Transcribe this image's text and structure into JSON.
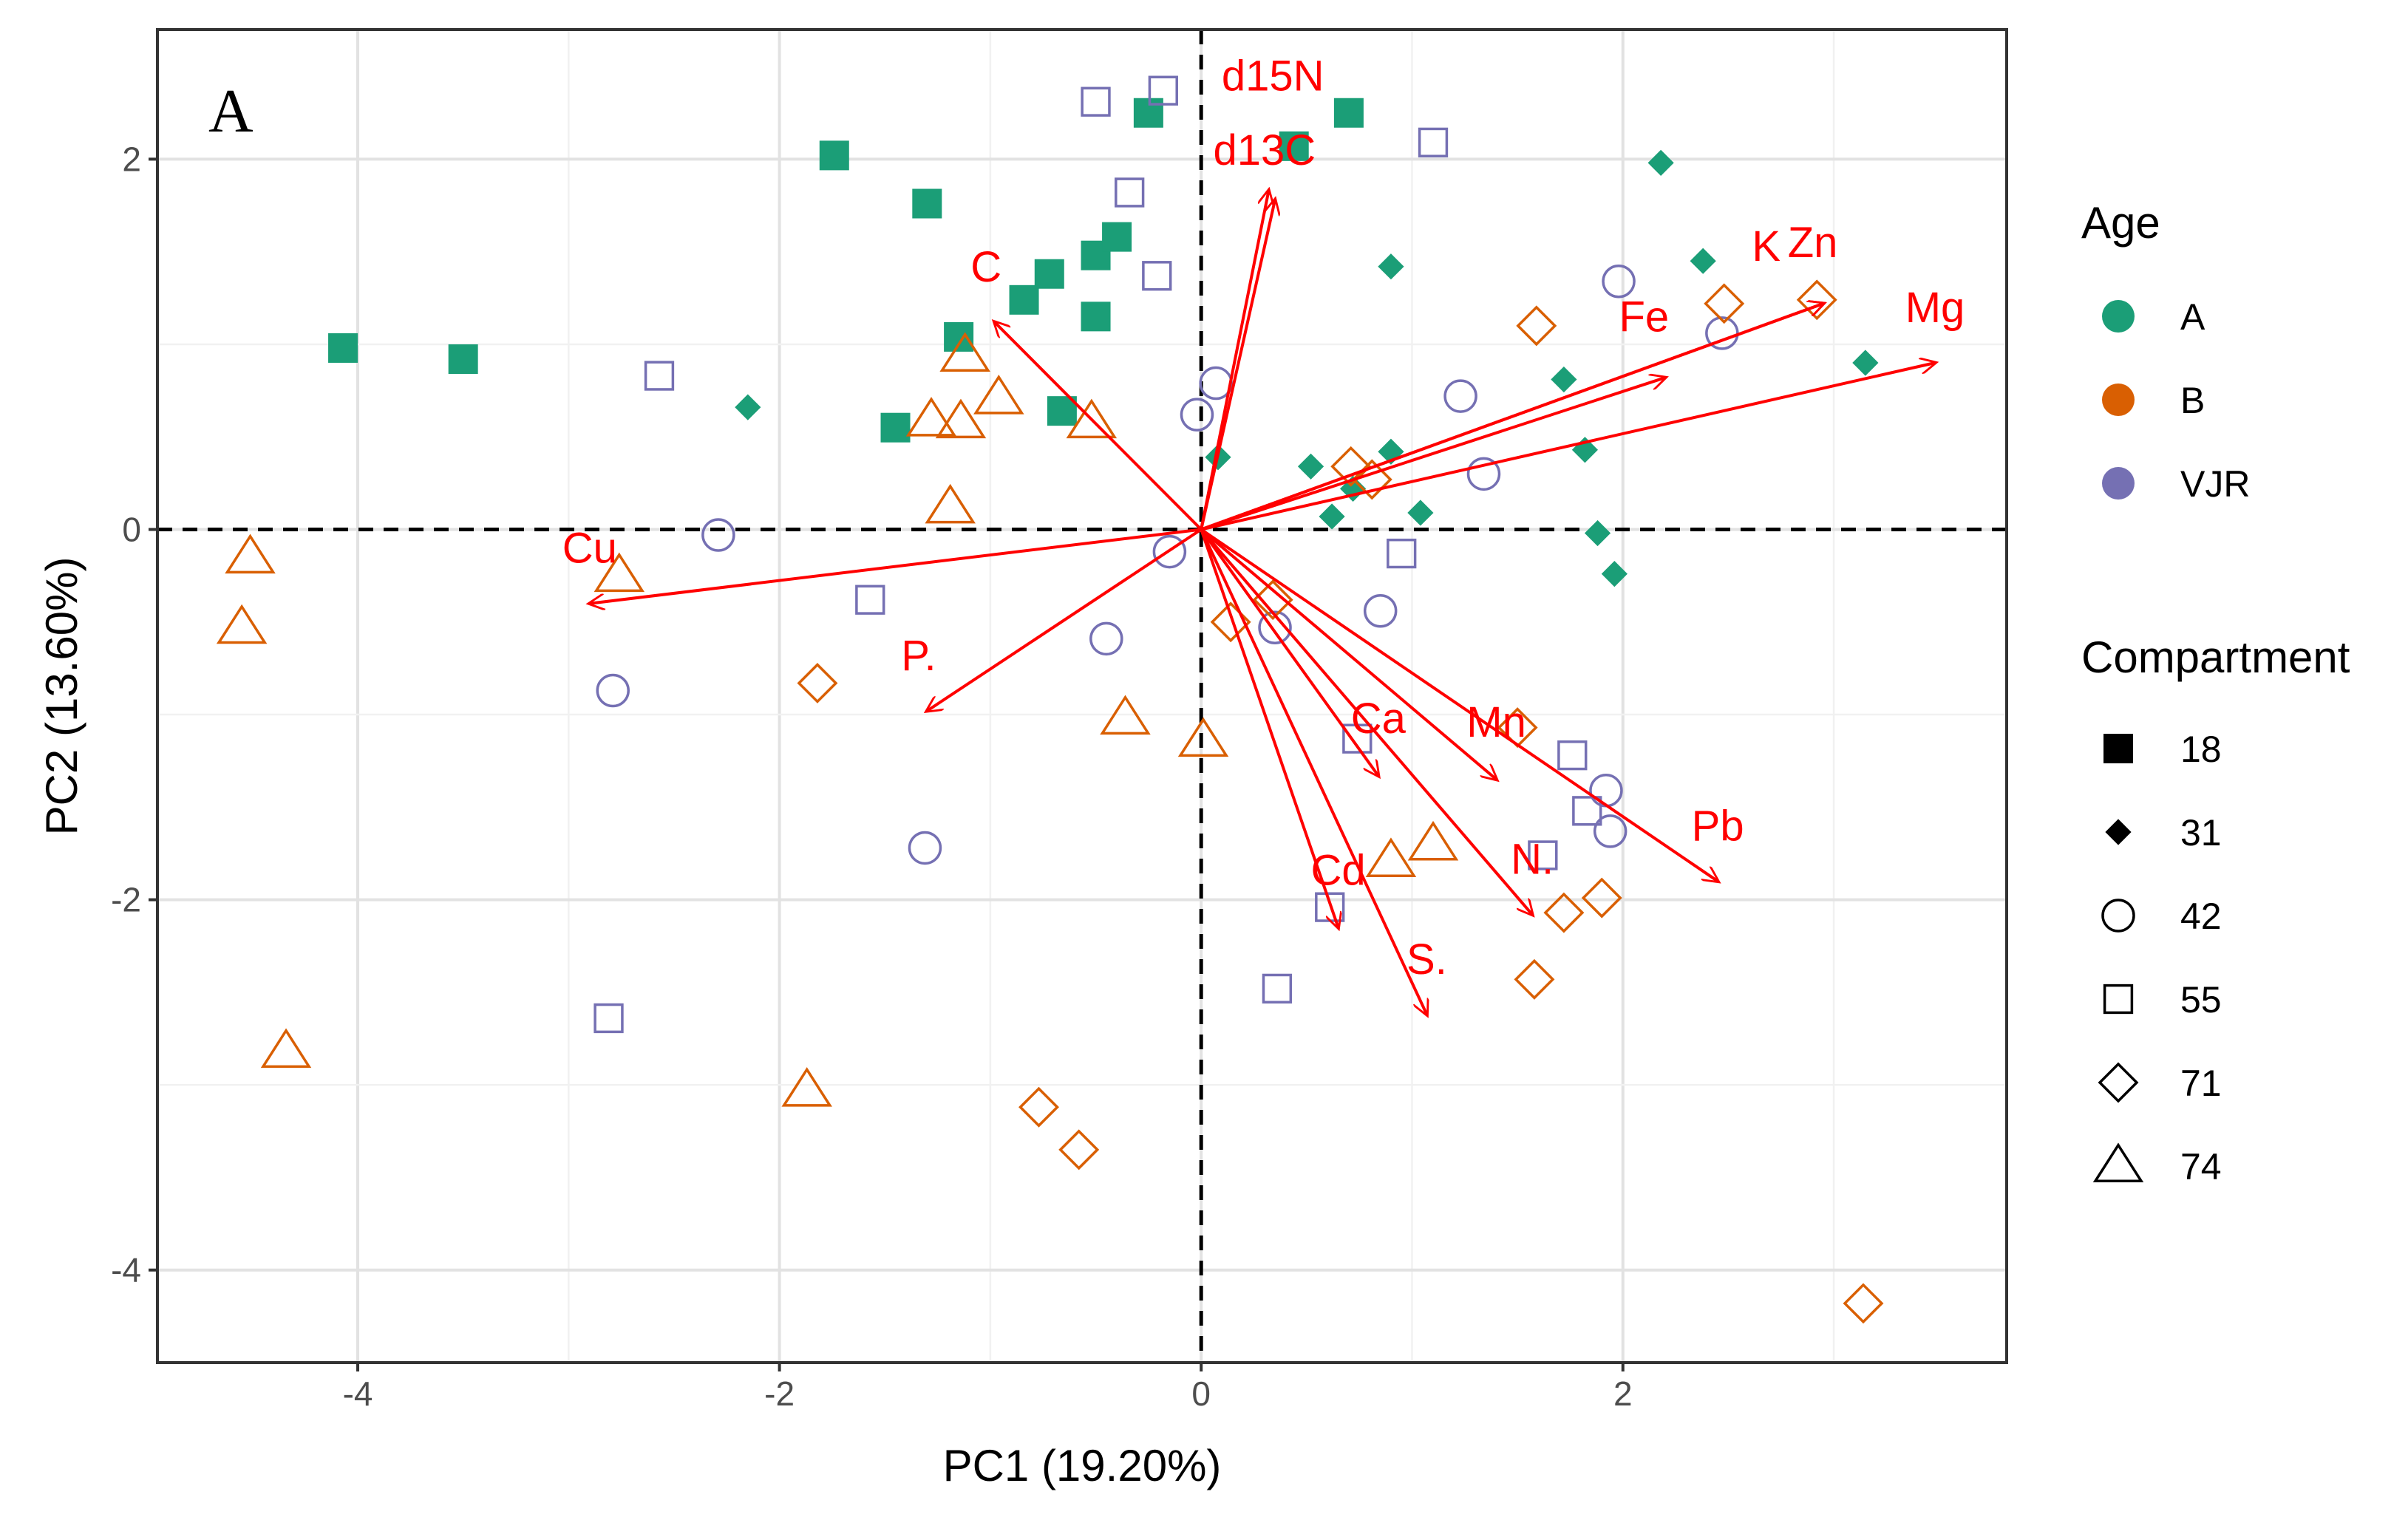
{
  "chart_data": {
    "type": "scatter",
    "panel_label": "A",
    "xlabel": "PC1 (19.20%)",
    "ylabel": "PC2 (13.60%)",
    "xlim": [
      -4.95,
      3.82
    ],
    "ylim": [
      -4.5,
      2.7
    ],
    "x_ticks": [
      -4,
      -2,
      0,
      2
    ],
    "y_ticks": [
      -4,
      -2,
      0,
      2
    ],
    "x_tick_labels": [
      "-4",
      "-2",
      "0",
      "2"
    ],
    "y_tick_labels": [
      "-4",
      "-2",
      "0",
      "2"
    ],
    "grid": true,
    "reference_lines": {
      "x": 0,
      "y": 0,
      "style": "dashed"
    },
    "legend_position": "right",
    "legends": {
      "age": {
        "title": "Age",
        "entries": [
          {
            "label": "A",
            "color": "#1b9e77"
          },
          {
            "label": "B",
            "color": "#d95f02"
          },
          {
            "label": "VJR",
            "color": "#7570b3"
          }
        ]
      },
      "compartment": {
        "title": "Compartment",
        "entries": [
          {
            "label": "18",
            "shape": "square-filled"
          },
          {
            "label": "31",
            "shape": "diamond-filled"
          },
          {
            "label": "42",
            "shape": "circle-open"
          },
          {
            "label": "55",
            "shape": "square-open"
          },
          {
            "label": "71",
            "shape": "diamond-open"
          },
          {
            "label": "74",
            "shape": "triangle-open"
          }
        ]
      }
    },
    "arrow_color": "#ff0000",
    "loadings": [
      {
        "label": "d15N",
        "x": 0.32,
        "y": 1.83
      },
      {
        "label": "d13C",
        "x": 0.35,
        "y": 1.78
      },
      {
        "label": "C",
        "x": -0.98,
        "y": 1.12
      },
      {
        "label": "K",
        "x": 2.95,
        "y": 1.22
      },
      {
        "label": "Zn",
        "x": 2.95,
        "y": 1.22
      },
      {
        "label": "Fe",
        "x": 2.2,
        "y": 0.82
      },
      {
        "label": "Mg",
        "x": 3.48,
        "y": 0.9
      },
      {
        "label": "Cu",
        "x": -2.9,
        "y": -0.4
      },
      {
        "label": "P",
        "x": -1.3,
        "y": -0.98
      },
      {
        "label": "Ca",
        "x": 0.84,
        "y": -1.33
      },
      {
        "label": "Mn",
        "x": 1.4,
        "y": -1.35
      },
      {
        "label": "Pb",
        "x": 2.45,
        "y": -1.9
      },
      {
        "label": "N",
        "x": 1.57,
        "y": -2.08
      },
      {
        "label": "Cd",
        "x": 0.65,
        "y": -2.15
      },
      {
        "label": "S",
        "x": 1.07,
        "y": -2.62
      }
    ],
    "loading_labels": [
      {
        "text": "d15N",
        "x": 0.34,
        "y": 2.37
      },
      {
        "text": "d13C",
        "x": 0.3,
        "y": 1.97
      },
      {
        "text": "C",
        "x": -1.02,
        "y": 1.34
      },
      {
        "text": "K",
        "x": 2.68,
        "y": 1.45
      },
      {
        "text": "Zn",
        "x": 2.9,
        "y": 1.47
      },
      {
        "text": "Fe",
        "x": 2.1,
        "y": 1.07
      },
      {
        "text": "Mg",
        "x": 3.48,
        "y": 1.12
      },
      {
        "text": "Cu",
        "x": -2.9,
        "y": -0.18
      },
      {
        "text": "P.",
        "x": -1.34,
        "y": -0.76
      },
      {
        "text": "Ca",
        "x": 0.84,
        "y": -1.1
      },
      {
        "text": "Mn",
        "x": 1.4,
        "y": -1.12
      },
      {
        "text": "Pb",
        "x": 2.45,
        "y": -1.68
      },
      {
        "text": "N.",
        "x": 1.57,
        "y": -1.86
      },
      {
        "text": "Cd",
        "x": 0.65,
        "y": -1.92
      },
      {
        "text": "S.",
        "x": 1.07,
        "y": -2.4
      }
    ],
    "points": [
      {
        "x": -4.07,
        "y": 0.98,
        "age": "A",
        "compartment": "18"
      },
      {
        "x": -3.5,
        "y": 0.92,
        "age": "A",
        "compartment": "18"
      },
      {
        "x": -1.74,
        "y": 2.02,
        "age": "A",
        "compartment": "18"
      },
      {
        "x": -1.3,
        "y": 1.76,
        "age": "A",
        "compartment": "18"
      },
      {
        "x": -1.15,
        "y": 1.04,
        "age": "A",
        "compartment": "18"
      },
      {
        "x": -1.45,
        "y": 0.55,
        "age": "A",
        "compartment": "18"
      },
      {
        "x": -0.84,
        "y": 1.24,
        "age": "A",
        "compartment": "18"
      },
      {
        "x": -0.72,
        "y": 1.38,
        "age": "A",
        "compartment": "18"
      },
      {
        "x": -0.5,
        "y": 1.48,
        "age": "A",
        "compartment": "18"
      },
      {
        "x": -0.4,
        "y": 1.58,
        "age": "A",
        "compartment": "18"
      },
      {
        "x": -0.5,
        "y": 1.15,
        "age": "A",
        "compartment": "18"
      },
      {
        "x": -0.66,
        "y": 0.64,
        "age": "A",
        "compartment": "18"
      },
      {
        "x": -0.25,
        "y": 2.25,
        "age": "A",
        "compartment": "18"
      },
      {
        "x": 0.44,
        "y": 2.07,
        "age": "A",
        "compartment": "18"
      },
      {
        "x": 0.7,
        "y": 2.25,
        "age": "A",
        "compartment": "18"
      },
      {
        "x": -2.15,
        "y": 0.66,
        "age": "A",
        "compartment": "31"
      },
      {
        "x": 0.08,
        "y": 0.39,
        "age": "A",
        "compartment": "31"
      },
      {
        "x": 0.52,
        "y": 0.34,
        "age": "A",
        "compartment": "31"
      },
      {
        "x": 0.62,
        "y": 0.07,
        "age": "A",
        "compartment": "31"
      },
      {
        "x": 0.72,
        "y": 0.22,
        "age": "A",
        "compartment": "31"
      },
      {
        "x": 0.9,
        "y": 0.42,
        "age": "A",
        "compartment": "31"
      },
      {
        "x": 1.04,
        "y": 0.09,
        "age": "A",
        "compartment": "31"
      },
      {
        "x": 0.9,
        "y": 1.42,
        "age": "A",
        "compartment": "31"
      },
      {
        "x": 1.72,
        "y": 0.81,
        "age": "A",
        "compartment": "31"
      },
      {
        "x": 1.82,
        "y": 0.43,
        "age": "A",
        "compartment": "31"
      },
      {
        "x": 1.88,
        "y": -0.02,
        "age": "A",
        "compartment": "31"
      },
      {
        "x": 1.96,
        "y": -0.24,
        "age": "A",
        "compartment": "31"
      },
      {
        "x": 2.18,
        "y": 1.98,
        "age": "A",
        "compartment": "31"
      },
      {
        "x": 2.38,
        "y": 1.45,
        "age": "A",
        "compartment": "31"
      },
      {
        "x": 3.15,
        "y": 0.9,
        "age": "A",
        "compartment": "31"
      },
      {
        "x": 1.98,
        "y": 1.34,
        "age": "VJR",
        "compartment": "42"
      },
      {
        "x": 1.23,
        "y": 0.72,
        "age": "VJR",
        "compartment": "42"
      },
      {
        "x": 1.34,
        "y": 0.3,
        "age": "VJR",
        "compartment": "42"
      },
      {
        "x": 0.07,
        "y": 0.79,
        "age": "VJR",
        "compartment": "42"
      },
      {
        "x": -0.02,
        "y": 0.62,
        "age": "VJR",
        "compartment": "42"
      },
      {
        "x": -0.15,
        "y": -0.12,
        "age": "VJR",
        "compartment": "42"
      },
      {
        "x": -0.45,
        "y": -0.59,
        "age": "VJR",
        "compartment": "42"
      },
      {
        "x": 0.35,
        "y": -0.53,
        "age": "VJR",
        "compartment": "42"
      },
      {
        "x": 0.85,
        "y": -0.44,
        "age": "VJR",
        "compartment": "42"
      },
      {
        "x": -2.29,
        "y": -0.03,
        "age": "VJR",
        "compartment": "42"
      },
      {
        "x": -2.79,
        "y": -0.87,
        "age": "VJR",
        "compartment": "42"
      },
      {
        "x": -1.31,
        "y": -1.72,
        "age": "VJR",
        "compartment": "42"
      },
      {
        "x": 1.92,
        "y": -1.41,
        "age": "VJR",
        "compartment": "42"
      },
      {
        "x": 1.94,
        "y": -1.63,
        "age": "VJR",
        "compartment": "42"
      },
      {
        "x": 2.47,
        "y": 1.06,
        "age": "VJR",
        "compartment": "42"
      },
      {
        "x": -0.5,
        "y": 2.31,
        "age": "VJR",
        "compartment": "55"
      },
      {
        "x": -0.18,
        "y": 2.37,
        "age": "VJR",
        "compartment": "55"
      },
      {
        "x": -0.34,
        "y": 1.82,
        "age": "VJR",
        "compartment": "55"
      },
      {
        "x": -0.21,
        "y": 1.37,
        "age": "VJR",
        "compartment": "55"
      },
      {
        "x": 1.1,
        "y": 2.09,
        "age": "VJR",
        "compartment": "55"
      },
      {
        "x": -2.57,
        "y": 0.83,
        "age": "VJR",
        "compartment": "55"
      },
      {
        "x": -1.57,
        "y": -0.38,
        "age": "VJR",
        "compartment": "55"
      },
      {
        "x": 0.95,
        "y": -0.13,
        "age": "VJR",
        "compartment": "55"
      },
      {
        "x": 0.74,
        "y": -1.13,
        "age": "VJR",
        "compartment": "55"
      },
      {
        "x": 1.76,
        "y": -1.22,
        "age": "VJR",
        "compartment": "55"
      },
      {
        "x": 1.83,
        "y": -1.52,
        "age": "VJR",
        "compartment": "55"
      },
      {
        "x": 1.62,
        "y": -1.76,
        "age": "VJR",
        "compartment": "55"
      },
      {
        "x": 0.61,
        "y": -2.04,
        "age": "VJR",
        "compartment": "55"
      },
      {
        "x": 0.36,
        "y": -2.48,
        "age": "VJR",
        "compartment": "55"
      },
      {
        "x": -2.81,
        "y": -2.64,
        "age": "VJR",
        "compartment": "55"
      },
      {
        "x": 1.59,
        "y": 1.1,
        "age": "B",
        "compartment": "71"
      },
      {
        "x": 2.48,
        "y": 1.22,
        "age": "B",
        "compartment": "71"
      },
      {
        "x": 2.92,
        "y": 1.24,
        "age": "B",
        "compartment": "71"
      },
      {
        "x": 0.71,
        "y": 0.34,
        "age": "B",
        "compartment": "71"
      },
      {
        "x": 0.81,
        "y": 0.27,
        "age": "B",
        "compartment": "71"
      },
      {
        "x": 0.14,
        "y": -0.5,
        "age": "B",
        "compartment": "71"
      },
      {
        "x": 0.34,
        "y": -0.38,
        "age": "B",
        "compartment": "71"
      },
      {
        "x": -1.82,
        "y": -0.83,
        "age": "B",
        "compartment": "71"
      },
      {
        "x": 1.5,
        "y": -1.07,
        "age": "B",
        "compartment": "71"
      },
      {
        "x": 1.72,
        "y": -2.07,
        "age": "B",
        "compartment": "71"
      },
      {
        "x": 1.9,
        "y": -1.99,
        "age": "B",
        "compartment": "71"
      },
      {
        "x": 1.58,
        "y": -2.43,
        "age": "B",
        "compartment": "71"
      },
      {
        "x": -0.77,
        "y": -3.12,
        "age": "B",
        "compartment": "71"
      },
      {
        "x": -0.58,
        "y": -3.35,
        "age": "B",
        "compartment": "71"
      },
      {
        "x": 3.14,
        "y": -4.18,
        "age": "B",
        "compartment": "71"
      },
      {
        "x": -1.12,
        "y": 0.94,
        "age": "B",
        "compartment": "74"
      },
      {
        "x": -0.96,
        "y": 0.71,
        "age": "B",
        "compartment": "74"
      },
      {
        "x": -1.28,
        "y": 0.59,
        "age": "B",
        "compartment": "74"
      },
      {
        "x": -1.14,
        "y": 0.58,
        "age": "B",
        "compartment": "74"
      },
      {
        "x": -0.52,
        "y": 0.58,
        "age": "B",
        "compartment": "74"
      },
      {
        "x": -1.19,
        "y": 0.12,
        "age": "B",
        "compartment": "74"
      },
      {
        "x": -2.76,
        "y": -0.25,
        "age": "B",
        "compartment": "74"
      },
      {
        "x": -4.51,
        "y": -0.15,
        "age": "B",
        "compartment": "74"
      },
      {
        "x": -4.55,
        "y": -0.53,
        "age": "B",
        "compartment": "74"
      },
      {
        "x": -0.36,
        "y": -1.02,
        "age": "B",
        "compartment": "74"
      },
      {
        "x": 0.01,
        "y": -1.14,
        "age": "B",
        "compartment": "74"
      },
      {
        "x": 0.9,
        "y": -1.79,
        "age": "B",
        "compartment": "74"
      },
      {
        "x": 1.1,
        "y": -1.7,
        "age": "B",
        "compartment": "74"
      },
      {
        "x": -4.34,
        "y": -2.82,
        "age": "B",
        "compartment": "74"
      },
      {
        "x": -1.87,
        "y": -3.03,
        "age": "B",
        "compartment": "74"
      }
    ]
  }
}
